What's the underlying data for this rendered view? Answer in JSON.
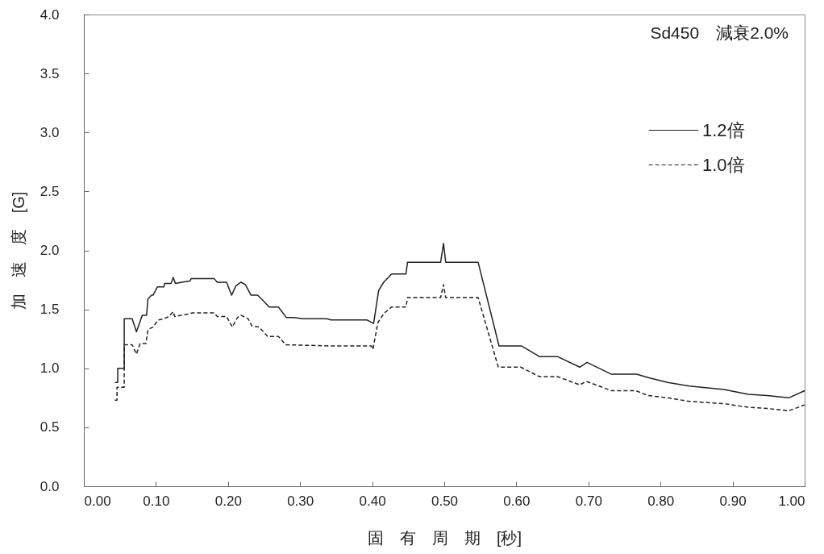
{
  "chart_data": {
    "type": "line",
    "annotations": [
      "Sd450　減衰2.0%"
    ],
    "xlabel": "固　有　周　期　[秒]",
    "ylabel": "加　速　度　[G]",
    "xlim": [
      0,
      1
    ],
    "ylim": [
      0,
      4
    ],
    "xticks": [
      {
        "value": 0,
        "label": "0.00"
      },
      {
        "value": 0.1,
        "label": "0.10"
      },
      {
        "value": 0.2,
        "label": "0.20"
      },
      {
        "value": 0.3,
        "label": "0.30"
      },
      {
        "value": 0.4,
        "label": "0.40"
      },
      {
        "value": 0.5,
        "label": "0.50"
      },
      {
        "value": 0.6,
        "label": "0.60"
      },
      {
        "value": 0.7,
        "label": "0.70"
      },
      {
        "value": 0.8,
        "label": "0.80"
      },
      {
        "value": 0.9,
        "label": "0.90"
      },
      {
        "value": 1,
        "label": "1.00"
      }
    ],
    "yticks": [
      {
        "value": 0,
        "label": "0.0"
      },
      0.5,
      {
        "value": 1,
        "label": "1.0"
      },
      1.5,
      {
        "value": 2,
        "label": "2.0"
      },
      2.5,
      {
        "value": 3,
        "label": "3.0"
      },
      3.5,
      {
        "value": 4,
        "label": "4.0"
      }
    ],
    "grid": false,
    "legend": "top right",
    "series": [
      {
        "name": "1.2倍",
        "color": "#222222",
        "line_style": "solid",
        "x": [
          0.043,
          0.047,
          0.047,
          0.056,
          0.056,
          0.067,
          0.073,
          0.081,
          0.087,
          0.089,
          0.094,
          0.096,
          0.102,
          0.111,
          0.112,
          0.121,
          0.124,
          0.127,
          0.136,
          0.147,
          0.149,
          0.181,
          0.185,
          0.198,
          0.205,
          0.211,
          0.218,
          0.224,
          0.232,
          0.241,
          0.248,
          0.257,
          0.27,
          0.281,
          0.291,
          0.304,
          0.337,
          0.343,
          0.393,
          0.402,
          0.409,
          0.416,
          0.427,
          0.447,
          0.449,
          0.495,
          0.499,
          0.502,
          0.547,
          0.576,
          0.607,
          0.632,
          0.657,
          0.688,
          0.698,
          0.732,
          0.767,
          0.784,
          0.81,
          0.84,
          0.888,
          0.922,
          0.948,
          0.978,
          1.0
        ],
        "values": [
          0.88,
          0.88,
          1.0,
          1.0,
          1.42,
          1.42,
          1.31,
          1.45,
          1.45,
          1.59,
          1.62,
          1.62,
          1.69,
          1.69,
          1.72,
          1.72,
          1.77,
          1.72,
          1.73,
          1.74,
          1.76,
          1.76,
          1.73,
          1.73,
          1.62,
          1.7,
          1.73,
          1.71,
          1.62,
          1.62,
          1.58,
          1.52,
          1.52,
          1.43,
          1.43,
          1.42,
          1.42,
          1.41,
          1.41,
          1.38,
          1.66,
          1.73,
          1.8,
          1.8,
          1.9,
          1.9,
          2.06,
          1.9,
          1.9,
          1.19,
          1.19,
          1.1,
          1.1,
          1.01,
          1.05,
          0.95,
          0.95,
          0.92,
          0.88,
          0.85,
          0.82,
          0.78,
          0.77,
          0.75,
          0.81
        ]
      },
      {
        "name": "1.0倍",
        "color": "#222222",
        "line_style": "dashed",
        "x": [
          0.043,
          0.046,
          0.046,
          0.056,
          0.056,
          0.067,
          0.073,
          0.078,
          0.086,
          0.089,
          0.096,
          0.103,
          0.111,
          0.118,
          0.124,
          0.126,
          0.144,
          0.151,
          0.181,
          0.185,
          0.198,
          0.206,
          0.213,
          0.218,
          0.228,
          0.233,
          0.243,
          0.255,
          0.27,
          0.28,
          0.341,
          0.399,
          0.401,
          0.408,
          0.417,
          0.427,
          0.447,
          0.449,
          0.495,
          0.499,
          0.502,
          0.547,
          0.575,
          0.606,
          0.632,
          0.657,
          0.688,
          0.697,
          0.732,
          0.766,
          0.782,
          0.81,
          0.84,
          0.888,
          0.922,
          0.948,
          0.978,
          1.0
        ],
        "values": [
          0.73,
          0.73,
          0.84,
          0.84,
          1.2,
          1.2,
          1.12,
          1.21,
          1.21,
          1.33,
          1.35,
          1.41,
          1.42,
          1.44,
          1.48,
          1.44,
          1.46,
          1.47,
          1.47,
          1.44,
          1.44,
          1.35,
          1.43,
          1.45,
          1.42,
          1.36,
          1.35,
          1.27,
          1.27,
          1.2,
          1.19,
          1.19,
          1.16,
          1.39,
          1.47,
          1.52,
          1.52,
          1.6,
          1.6,
          1.71,
          1.6,
          1.6,
          1.01,
          1.01,
          0.93,
          0.93,
          0.86,
          0.89,
          0.81,
          0.81,
          0.77,
          0.75,
          0.72,
          0.7,
          0.67,
          0.66,
          0.64,
          0.69
        ]
      }
    ]
  }
}
